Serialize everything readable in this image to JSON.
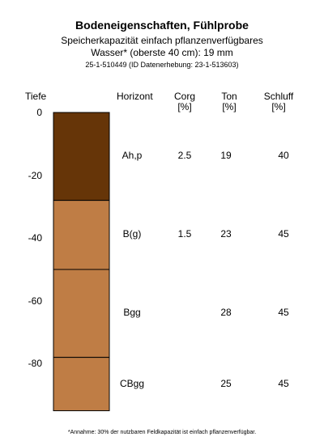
{
  "header": {
    "title": "Bodeneigenschaften, Fühlprobe",
    "subtitle_line1": "Speicherkapazität einfach pflanzenverfügbares",
    "subtitle_line2": "Wasser* (oberste 40 cm): 19 mm",
    "id_line": "25-1-510449 (ID Datenerhebung: 23-1-513603)"
  },
  "columns": {
    "depth": "Tiefe",
    "horizon": "Horizont",
    "corg_line1": "Corg",
    "corg_line2": "[%]",
    "ton_line1": "Ton",
    "ton_line2": "[%]",
    "schluff_line1": "Schluff",
    "schluff_line2": "[%]"
  },
  "depth_axis": {
    "ticks": [
      "0",
      "-20",
      "-40",
      "-60",
      "-80"
    ],
    "range": [
      0,
      -95
    ]
  },
  "colors": {
    "topsoil": "#663508",
    "subsoil": "#bf7d45",
    "outline": "#000000"
  },
  "horizons": [
    {
      "name": "Ah,p",
      "top": 0,
      "bottom": -28,
      "corg": "2.5",
      "ton": "19",
      "schluff": "40",
      "color": "#663508"
    },
    {
      "name": "B(g)",
      "top": -28,
      "bottom": -50,
      "corg": "1.5",
      "ton": "23",
      "schluff": "45",
      "color": "#bf7d45"
    },
    {
      "name": "Bgg",
      "top": -50,
      "bottom": -78,
      "corg": "",
      "ton": "28",
      "schluff": "45",
      "color": "#bf7d45"
    },
    {
      "name": "CBgg",
      "top": -78,
      "bottom": -95,
      "corg": "",
      "ton": "25",
      "schluff": "45",
      "color": "#bf7d45"
    }
  ],
  "footnote": "*Annahme: 30% der nutzbaren Feldkapazität ist einfach pflanzenverfügbar."
}
